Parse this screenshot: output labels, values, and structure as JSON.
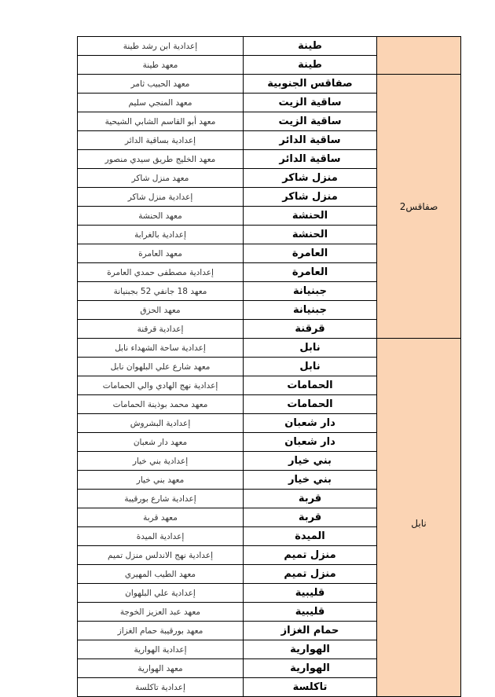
{
  "colors": {
    "region_fill": "#fbd4b4",
    "border": "#000000"
  },
  "groups": [
    {
      "region": "",
      "rows": [
        {
          "city": "طينة",
          "school": "إعدادية ابن رشد طينة"
        },
        {
          "city": "طينة",
          "school": "معهد طينة"
        }
      ]
    },
    {
      "region": "صفاقس2",
      "rows": [
        {
          "city": "صفاقس الجنوبية",
          "school": "معهد الحبيب ثامر"
        },
        {
          "city": "ساقية الزيت",
          "school": "معهد المنجي سليم"
        },
        {
          "city": "ساقية الزيت",
          "school": "معهد أبو القاسم الشابي الشيحية"
        },
        {
          "city": "ساقية الدائر",
          "school": "إعدادية بساقية الدائر"
        },
        {
          "city": "ساقية الدائر",
          "school": "معهد الخليج طريق سيدي منصور"
        },
        {
          "city": "منزل شاكر",
          "school": "معهد منزل شاكر"
        },
        {
          "city": "منزل شاكر",
          "school": "إعدادية منزل شاكر"
        },
        {
          "city": "الحنشة",
          "school": "معهد الحنشة"
        },
        {
          "city": "الحنشة",
          "school": "إعدادية بالغرابة"
        },
        {
          "city": "العامرة",
          "school": "معهد العامرة"
        },
        {
          "city": "العامرة",
          "school": "إعدادية مصطفى حمدي العامرة"
        },
        {
          "city": "جبنيانة",
          "school": "معهد 18 جانفي 52 بجبنيانة"
        },
        {
          "city": "جبنيانة",
          "school": "معهد الحزق"
        },
        {
          "city": "قرقنة",
          "school": "إعدادية قرقنة"
        }
      ]
    },
    {
      "region": "نابل",
      "rows": [
        {
          "city": "نابل",
          "school": "إعدادية ساحة الشهداء نابل"
        },
        {
          "city": "نابل",
          "school": "معهد شارع علي البلهوان نابل"
        },
        {
          "city": "الحمامات",
          "school": "إعدادية نهج الهادي والي الحمامات"
        },
        {
          "city": "الحمامات",
          "school": "معهد محمد بوذينة الحمامات"
        },
        {
          "city": "دار شعبان",
          "school": "إعدادية البشروش"
        },
        {
          "city": "دار شعبان",
          "school": "معهد دار شعبان"
        },
        {
          "city": "بني خيار",
          "school": "إعدادية بني خيار"
        },
        {
          "city": "بني خيار",
          "school": "معهد بني خيار"
        },
        {
          "city": "قربة",
          "school": "إعدادية شارع بورقيبة"
        },
        {
          "city": "قربة",
          "school": "معهد قربة"
        },
        {
          "city": "الميدة",
          "school": "إعدادية الميدة"
        },
        {
          "city": "منزل تميم",
          "school": "إعدادية نهج الاندلس منزل تميم"
        },
        {
          "city": "منزل تميم",
          "school": "معهد الطيب المهيري"
        },
        {
          "city": "قليبية",
          "school": "إعدادية علي البلهوان"
        },
        {
          "city": "قليبية",
          "school": "معهد عبد العزيز الخوجة"
        },
        {
          "city": "حمام الغزاز",
          "school": "معهد بورقيبة حمام الغزاز"
        },
        {
          "city": "الهوارية",
          "school": "إعدادية الهوارية"
        },
        {
          "city": "الهوارية",
          "school": "معهد الهوارية"
        },
        {
          "city": "تاكلسة",
          "school": "إعدادية تاكلسة"
        }
      ]
    }
  ]
}
